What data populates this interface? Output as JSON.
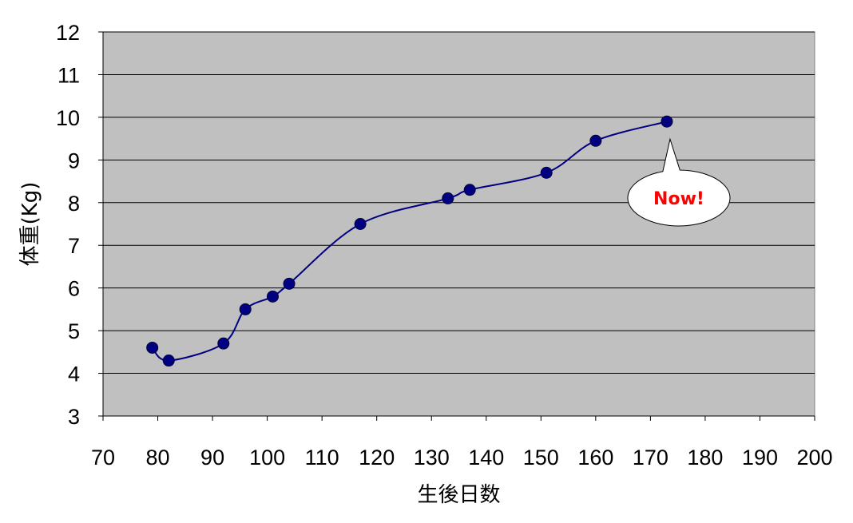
{
  "chart_data": {
    "type": "line",
    "title": "",
    "xlabel": "生後日数",
    "ylabel": "体重(Kg)",
    "xlim": [
      70,
      200
    ],
    "ylim": [
      3,
      12
    ],
    "xticks": [
      70,
      80,
      90,
      100,
      110,
      120,
      130,
      140,
      150,
      160,
      170,
      180,
      190,
      200
    ],
    "yticks": [
      3,
      4,
      5,
      6,
      7,
      8,
      9,
      10,
      11,
      12
    ],
    "grid": "horizontal",
    "plot_background": "#c0c0c0",
    "series": [
      {
        "color": "#000080",
        "marker": "circle",
        "smooth": true,
        "points": [
          {
            "x": 79,
            "y": 4.6
          },
          {
            "x": 82,
            "y": 4.3
          },
          {
            "x": 92,
            "y": 4.7
          },
          {
            "x": 96,
            "y": 5.5
          },
          {
            "x": 101,
            "y": 5.8
          },
          {
            "x": 104,
            "y": 6.1
          },
          {
            "x": 117,
            "y": 7.5
          },
          {
            "x": 133,
            "y": 8.1
          },
          {
            "x": 137,
            "y": 8.3
          },
          {
            "x": 151,
            "y": 8.7
          },
          {
            "x": 160,
            "y": 9.45
          },
          {
            "x": 173,
            "y": 9.9
          }
        ]
      }
    ],
    "annotation": {
      "text": "Now!",
      "color": "#ff0000",
      "target": {
        "x": 173,
        "y": 9.9
      }
    }
  }
}
